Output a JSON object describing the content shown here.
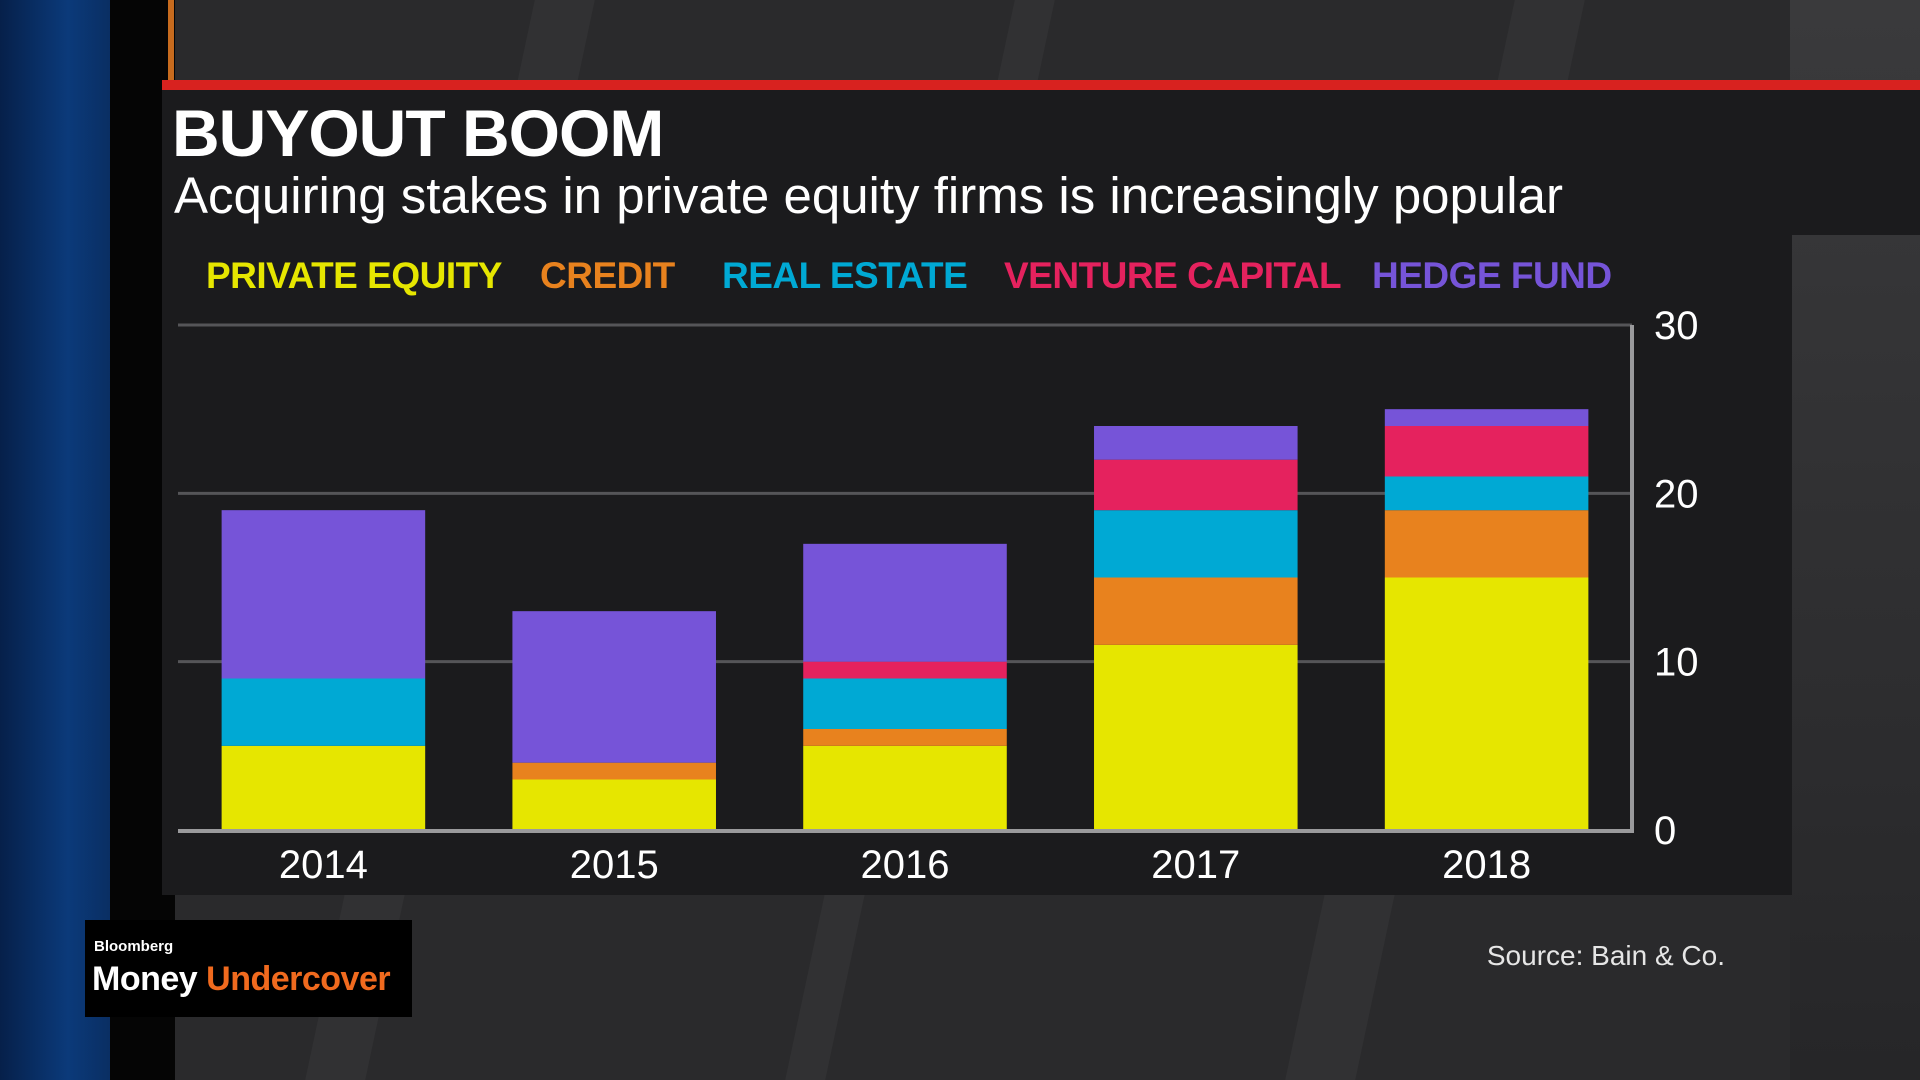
{
  "header": {
    "title": "BUYOUT BOOM",
    "subtitle": "Acquiring stakes in private equity firms is increasingly popular"
  },
  "branding": {
    "network": "Bloomberg",
    "show_part1": "Money",
    "show_part2": "Undercover",
    "accent_color": "#f06a1e"
  },
  "source": "Source: Bain & Co.",
  "colors": {
    "background": "#2a2a2c",
    "panel": "#1b1b1d",
    "title_rule": "#d8221f"
  },
  "chart_data": {
    "type": "bar",
    "stacked": true,
    "categories": [
      "2014",
      "2015",
      "2016",
      "2017",
      "2018"
    ],
    "series": [
      {
        "name": "PRIVATE EQUITY",
        "color": "#e6e600",
        "values": [
          5,
          3,
          5,
          11,
          15
        ]
      },
      {
        "name": "CREDIT",
        "color": "#e8821e",
        "values": [
          0,
          1,
          1,
          4,
          4
        ]
      },
      {
        "name": "REAL ESTATE",
        "color": "#00a9d4",
        "values": [
          4,
          0,
          3,
          4,
          2
        ]
      },
      {
        "name": "VENTURE CAPITAL",
        "color": "#e5225e",
        "values": [
          0,
          0,
          1,
          3,
          3
        ]
      },
      {
        "name": "HEDGE FUND",
        "color": "#7654d8",
        "values": [
          10,
          9,
          7,
          2,
          1
        ]
      }
    ],
    "yticks": [
      0,
      10,
      20,
      30
    ],
    "ylim": [
      0,
      30
    ],
    "y_axis_side": "right",
    "grid": true,
    "legend_position": "top"
  }
}
